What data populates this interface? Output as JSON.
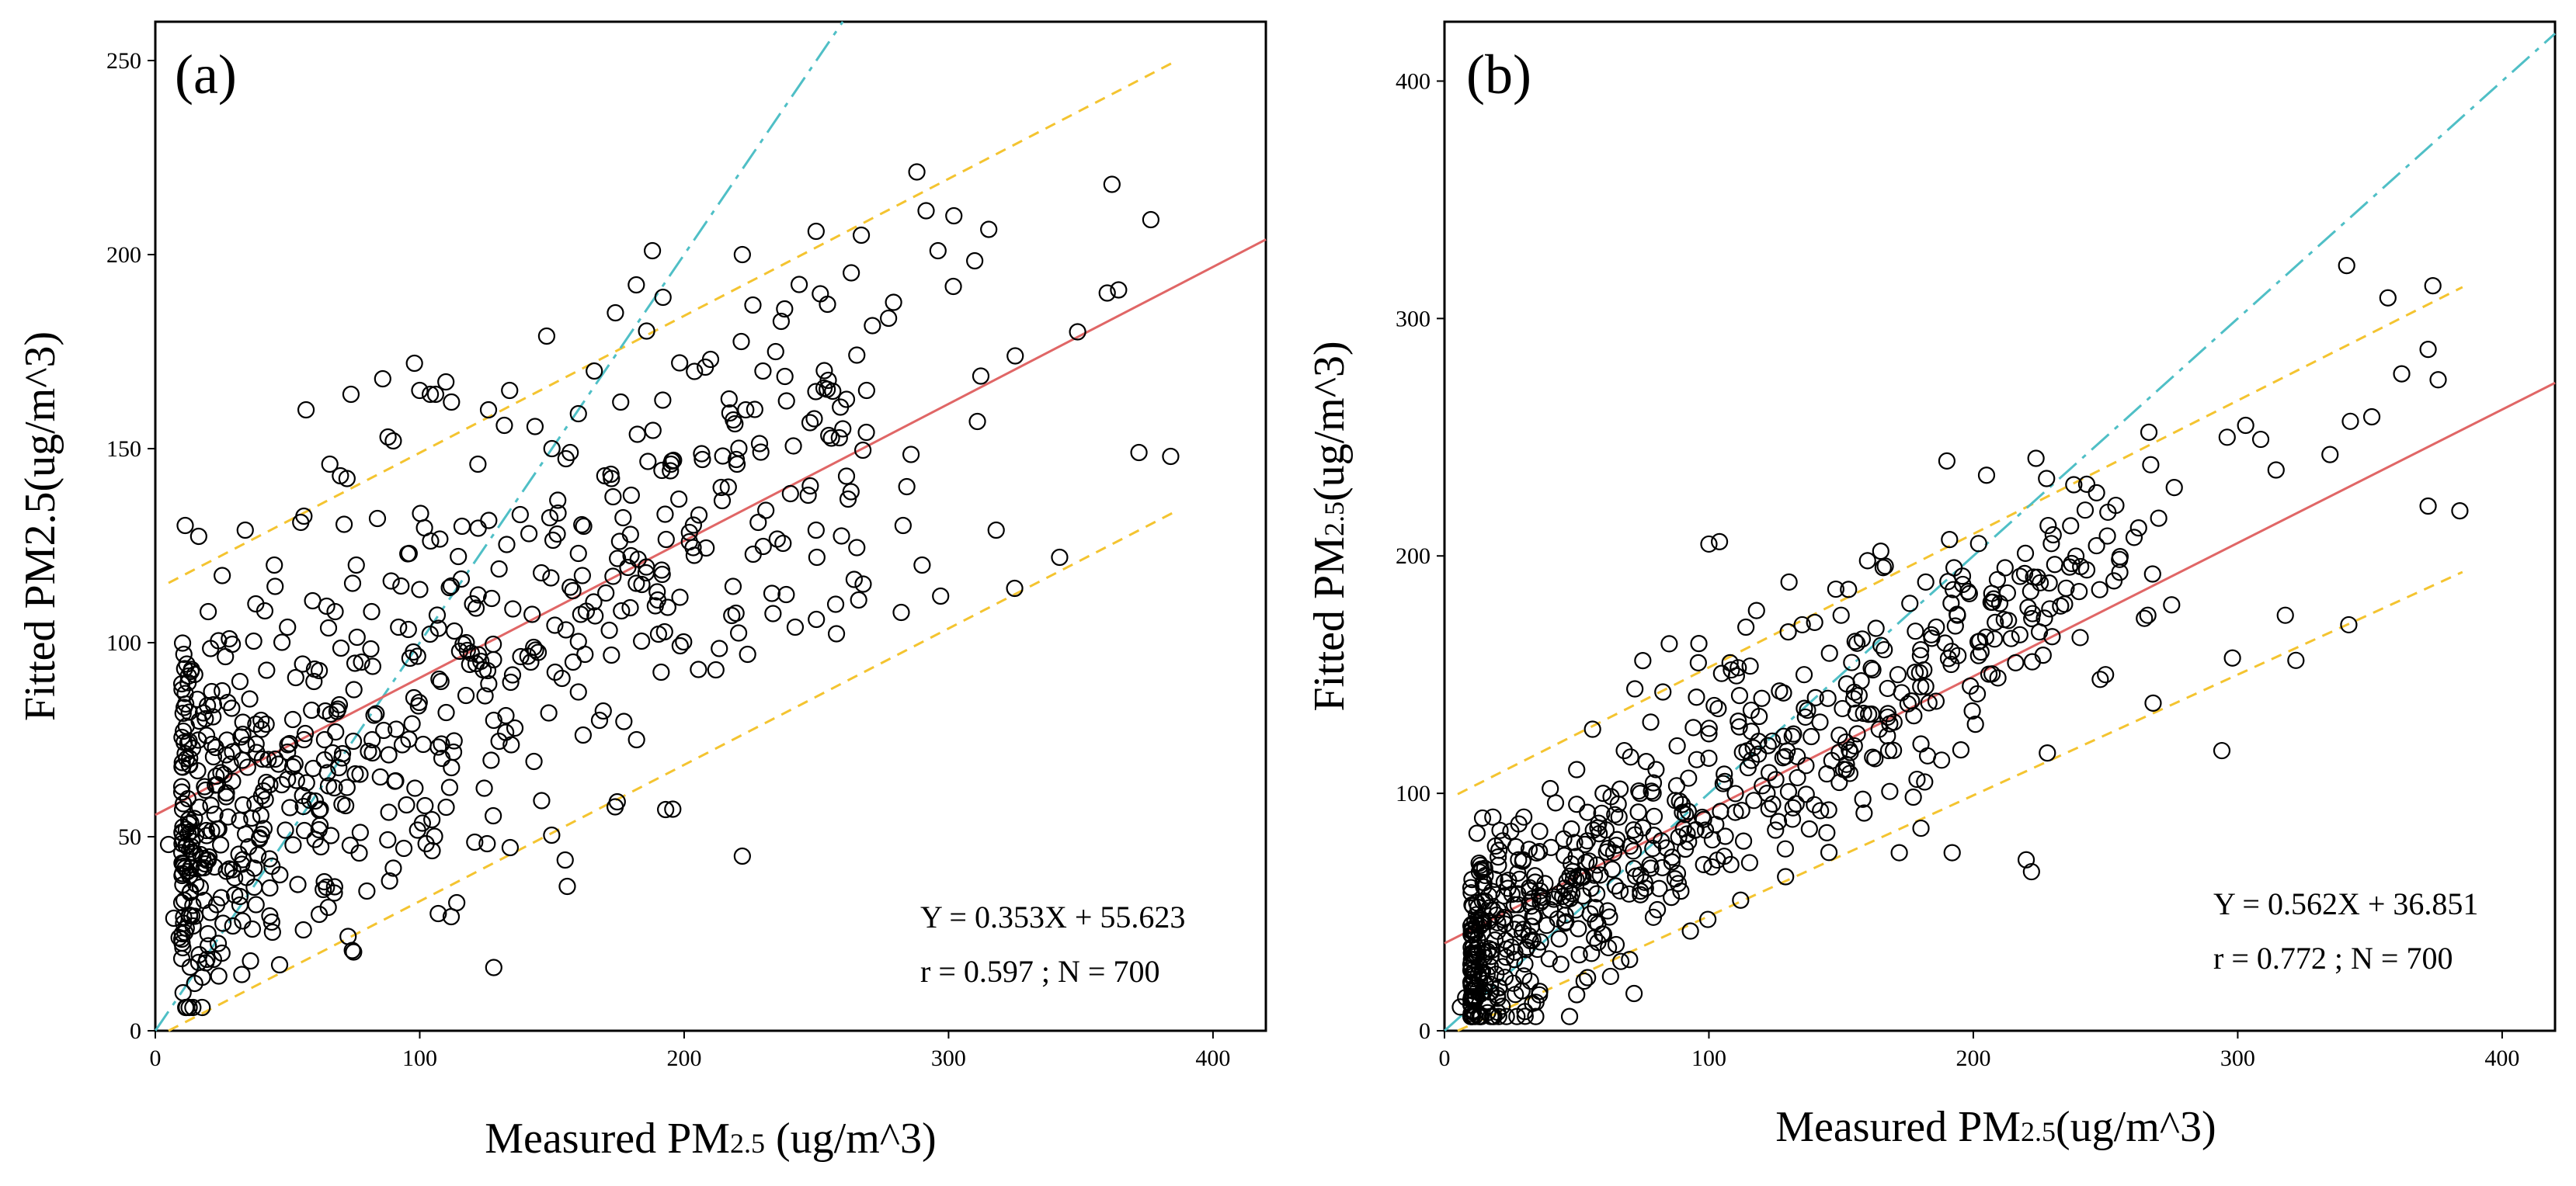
{
  "figure": {
    "description_free": true
  },
  "chart_data": [
    {
      "type": "scatter",
      "panel_label": "(a)",
      "xlabel": "Measured PM2.5 (ug/m^3)",
      "xlabel_parts": {
        "prefix": "Measured PM",
        "sub": "2.5",
        "suffix": " (ug/m^3)"
      },
      "ylabel": "Fitted PM2.5(ug/m^3)",
      "ylabel_parts": {
        "prefix": "Fitted PM2.5(ug/m^3)",
        "sub": "",
        "suffix": ""
      },
      "xlim": [
        0,
        420
      ],
      "ylim": [
        0,
        260
      ],
      "xticks": [
        0,
        100,
        200,
        300,
        400
      ],
      "yticks": [
        0,
        50,
        100,
        150,
        200,
        250
      ],
      "xtick_labels": [
        "0",
        "100",
        "200",
        "300",
        "400"
      ],
      "ytick_labels": [
        "0",
        "50",
        "100",
        "150",
        "200",
        "250"
      ],
      "regression": {
        "slope": 0.353,
        "intercept": 55.623,
        "x_range": [
          0,
          420
        ],
        "color": "#e06666"
      },
      "identity_line": {
        "x_range": [
          0,
          420
        ],
        "color": "#4fbfc6"
      },
      "prediction_band": {
        "offset": 58,
        "x_range": [
          5,
          385
        ],
        "color": "#f4c430"
      },
      "annotation": {
        "equation": "Y = 0.353X + 55.623",
        "stats": "r = 0.597 ; N = 700"
      },
      "n_points": 700,
      "seed": 11,
      "points_sample": [
        [
          5,
          48
        ],
        [
          7,
          29
        ],
        [
          9,
          24
        ],
        [
          14,
          46
        ],
        [
          16,
          67
        ],
        [
          19,
          62
        ],
        [
          20,
          108
        ],
        [
          22,
          84
        ],
        [
          24,
          52
        ],
        [
          26,
          66
        ],
        [
          28,
          101
        ],
        [
          30,
          35
        ],
        [
          32,
          90
        ],
        [
          34,
          129
        ],
        [
          36,
          18
        ],
        [
          38,
          110
        ],
        [
          40,
          80
        ],
        [
          42,
          64
        ],
        [
          44,
          28
        ],
        [
          45,
          120
        ],
        [
          47,
          17
        ],
        [
          50,
          104
        ],
        [
          52,
          68
        ],
        [
          55,
          131
        ],
        [
          57,
          160
        ],
        [
          60,
          90
        ],
        [
          62,
          30
        ],
        [
          64,
          75
        ],
        [
          66,
          146
        ],
        [
          68,
          108
        ],
        [
          70,
          143
        ],
        [
          72,
          58
        ],
        [
          74,
          164
        ],
        [
          76,
          120
        ],
        [
          78,
          95
        ],
        [
          80,
          36
        ],
        [
          82,
          75
        ],
        [
          84,
          132
        ],
        [
          86,
          168
        ],
        [
          88,
          153
        ],
        [
          90,
          152
        ],
        [
          92,
          104
        ],
        [
          94,
          47
        ],
        [
          96,
          123
        ],
        [
          98,
          172
        ],
        [
          100,
          165
        ],
        [
          102,
          58
        ],
        [
          104,
          164
        ],
        [
          106,
          164
        ],
        [
          108,
          90
        ],
        [
          110,
          82
        ],
        [
          112,
          162
        ],
        [
          114,
          33
        ],
        [
          116,
          130
        ],
        [
          118,
          98
        ],
        [
          120,
          110
        ],
        [
          122,
          146
        ],
        [
          124,
          93
        ],
        [
          126,
          160
        ],
        [
          128,
          80
        ],
        [
          130,
          119
        ],
        [
          132,
          156
        ],
        [
          134,
          165
        ],
        [
          136,
          78
        ],
        [
          138,
          133
        ],
        [
          142,
          95
        ],
        [
          146,
          118
        ],
        [
          148,
          179
        ],
        [
          150,
          150
        ],
        [
          152,
          128
        ],
        [
          155,
          44
        ],
        [
          158,
          95
        ],
        [
          160,
          159
        ],
        [
          162,
          130
        ],
        [
          166,
          170
        ],
        [
          168,
          80
        ],
        [
          170,
          143
        ],
        [
          174,
          185
        ],
        [
          176,
          162
        ],
        [
          180,
          138
        ],
        [
          182,
          75
        ],
        [
          184,
          115
        ],
        [
          188,
          201
        ],
        [
          190,
          111
        ],
        [
          192,
          189
        ],
        [
          193,
          57
        ],
        [
          195,
          146
        ],
        [
          198,
          137
        ],
        [
          202,
          126
        ],
        [
          208,
          171
        ],
        [
          210,
          173
        ],
        [
          212,
          93
        ],
        [
          214,
          140
        ],
        [
          218,
          107
        ],
        [
          220,
          146
        ],
        [
          222,
          200
        ],
        [
          222,
          45
        ],
        [
          224,
          97
        ],
        [
          226,
          187
        ],
        [
          228,
          131
        ],
        [
          238,
          186
        ],
        [
          242,
          104
        ],
        [
          250,
          106
        ],
        [
          262,
          137
        ],
        [
          266,
          111
        ],
        [
          290,
          120
        ],
        [
          296,
          201
        ],
        [
          297,
          112
        ],
        [
          302,
          210
        ],
        [
          318,
          129
        ],
        [
          325,
          114
        ],
        [
          342,
          122
        ],
        [
          372,
          149
        ],
        [
          384,
          148
        ]
      ]
    },
    {
      "type": "scatter",
      "panel_label": "(b)",
      "xlabel": "Measured PM2.5(ug/m^3)",
      "xlabel_parts": {
        "prefix": "Measured PM",
        "sub": "2.5",
        "suffix": "(ug/m^3)"
      },
      "ylabel": "Fitted PM2.5(ug/m^3)",
      "ylabel_parts": {
        "prefix": "Fitted PM",
        "sub": "2.5",
        "suffix": "(ug/m^3)"
      },
      "xlim": [
        0,
        420
      ],
      "ylim": [
        0,
        425
      ],
      "xticks": [
        0,
        100,
        200,
        300,
        400
      ],
      "yticks": [
        0,
        100,
        200,
        300,
        400
      ],
      "xtick_labels": [
        "0",
        "100",
        "200",
        "300",
        "400"
      ],
      "ytick_labels": [
        "0",
        "100",
        "200",
        "300",
        "400"
      ],
      "regression": {
        "slope": 0.562,
        "intercept": 36.851,
        "x_range": [
          0,
          420
        ],
        "color": "#e06666"
      },
      "identity_line": {
        "x_range": [
          0,
          420
        ],
        "color": "#4fbfc6"
      },
      "prediction_band": {
        "offset": 60,
        "x_range": [
          5,
          385
        ],
        "color": "#f4c430"
      },
      "annotation": {
        "equation": "Y = 0.562X + 36.851",
        "stats": "r = 0.772 ; N = 700"
      },
      "n_points": 700,
      "seed": 23,
      "points_sample": [
        [
          6,
          10
        ],
        [
          8,
          14
        ],
        [
          10,
          28
        ],
        [
          14,
          45
        ],
        [
          18,
          34
        ],
        [
          20,
          15
        ],
        [
          22,
          80
        ],
        [
          24,
          60
        ],
        [
          26,
          20
        ],
        [
          28,
          72
        ],
        [
          30,
          90
        ],
        [
          32,
          40
        ],
        [
          34,
          48
        ],
        [
          36,
          84
        ],
        [
          38,
          62
        ],
        [
          40,
          102
        ],
        [
          42,
          96
        ],
        [
          44,
          28
        ],
        [
          46,
          55
        ],
        [
          48,
          85
        ],
        [
          50,
          110
        ],
        [
          52,
          65
        ],
        [
          54,
          80
        ],
        [
          56,
          127
        ],
        [
          58,
          45
        ],
        [
          60,
          100
        ],
        [
          62,
          35
        ],
        [
          64,
          75
        ],
        [
          66,
          90
        ],
        [
          68,
          118
        ],
        [
          70,
          30
        ],
        [
          72,
          144
        ],
        [
          74,
          100
        ],
        [
          76,
          60
        ],
        [
          78,
          130
        ],
        [
          80,
          110
        ],
        [
          82,
          80
        ],
        [
          85,
          163
        ],
        [
          88,
          120
        ],
        [
          90,
          92
        ],
        [
          93,
          42
        ],
        [
          96,
          155
        ],
        [
          98,
          70
        ],
        [
          100,
          205
        ],
        [
          102,
          137
        ],
        [
          104,
          206
        ],
        [
          106,
          105
        ],
        [
          108,
          155
        ],
        [
          110,
          92
        ],
        [
          112,
          55
        ],
        [
          114,
          170
        ],
        [
          116,
          135
        ],
        [
          118,
          177
        ],
        [
          120,
          140
        ],
        [
          122,
          100
        ],
        [
          124,
          122
        ],
        [
          128,
          115
        ],
        [
          130,
          168
        ],
        [
          132,
          125
        ],
        [
          136,
          150
        ],
        [
          138,
          85
        ],
        [
          140,
          172
        ],
        [
          142,
          130
        ],
        [
          145,
          140
        ],
        [
          148,
          186
        ],
        [
          150,
          175
        ],
        [
          152,
          110
        ],
        [
          155,
          120
        ],
        [
          158,
          165
        ],
        [
          160,
          198
        ],
        [
          162,
          152
        ],
        [
          165,
          202
        ],
        [
          168,
          118
        ],
        [
          170,
          130
        ],
        [
          172,
          75
        ],
        [
          176,
          180
        ],
        [
          180,
          158
        ],
        [
          182,
          145
        ],
        [
          186,
          170
        ],
        [
          188,
          114
        ],
        [
          190,
          240
        ],
        [
          192,
          75
        ],
        [
          194,
          175
        ],
        [
          196,
          188
        ],
        [
          198,
          185
        ],
        [
          202,
          158
        ],
        [
          205,
          234
        ],
        [
          208,
          165
        ],
        [
          210,
          180
        ],
        [
          212,
          195
        ],
        [
          216,
          155
        ],
        [
          220,
          72
        ],
        [
          222,
          67
        ],
        [
          225,
          168
        ],
        [
          228,
          117
        ],
        [
          238,
          230
        ],
        [
          240,
          185
        ],
        [
          248,
          148
        ],
        [
          250,
          150
        ],
        [
          266,
          175
        ],
        [
          268,
          138
        ],
        [
          294,
          118
        ],
        [
          296,
          250
        ],
        [
          298,
          157
        ],
        [
          303,
          255
        ],
        [
          318,
          175
        ],
        [
          322,
          156
        ],
        [
          342,
          171
        ],
        [
          372,
          221
        ],
        [
          384,
          219
        ]
      ]
    }
  ]
}
